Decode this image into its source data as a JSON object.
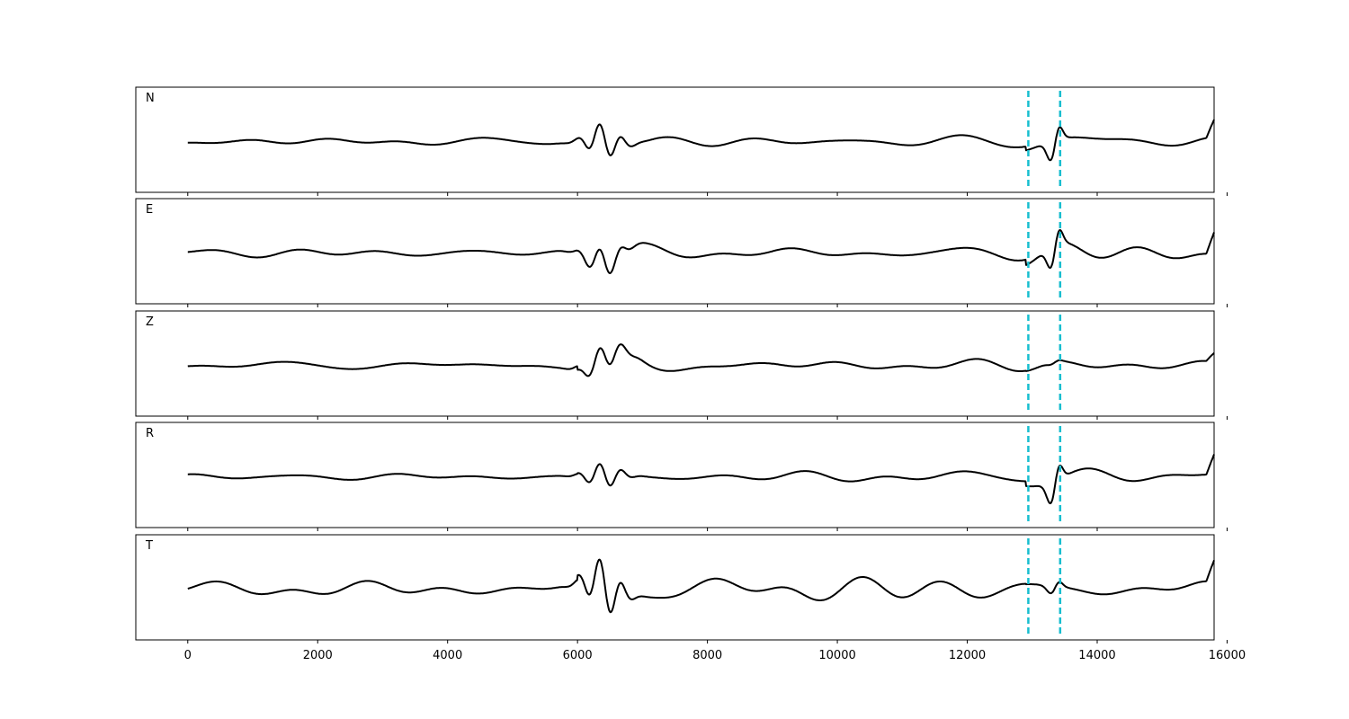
{
  "chart_data": {
    "type": "line",
    "xlim": [
      -800,
      15800
    ],
    "x_ticks": [
      "0",
      "2000",
      "4000",
      "6000",
      "8000",
      "10000",
      "12000",
      "14000",
      "16000"
    ],
    "x_tick_values": [
      0,
      2000,
      4000,
      6000,
      8000,
      10000,
      12000,
      14000,
      16000
    ],
    "xlabel": "",
    "ylabel": "",
    "x_end": 15800,
    "markers": {
      "x": [
        12940,
        13430
      ],
      "color": "#17becf",
      "style": "dashed"
    },
    "trace_color": "#000000",
    "grid": false,
    "legend": "none",
    "panels": [
      {
        "label": "N",
        "noise_level": 0.09,
        "ring": 0.16,
        "late": 0.24,
        "late_dip": 0.5,
        "tail": 0.4
      },
      {
        "label": "E",
        "noise_level": 0.08,
        "ring": 0.14,
        "late": 0.22,
        "late_dip": 0.55,
        "tail": 0.5
      },
      {
        "label": "Z",
        "noise_level": 0.06,
        "ring": 0.13,
        "late": 0.12,
        "late_dip": 0.05,
        "tail": 0.2
      },
      {
        "label": "R",
        "noise_level": 0.06,
        "ring": 0.12,
        "late": 0.21,
        "late_dip": 0.55,
        "tail": 0.45
      },
      {
        "label": "T",
        "noise_level": 0.13,
        "ring": 0.26,
        "late": 0.2,
        "late_dip": 0.2,
        "tail": 0.5
      }
    ]
  }
}
